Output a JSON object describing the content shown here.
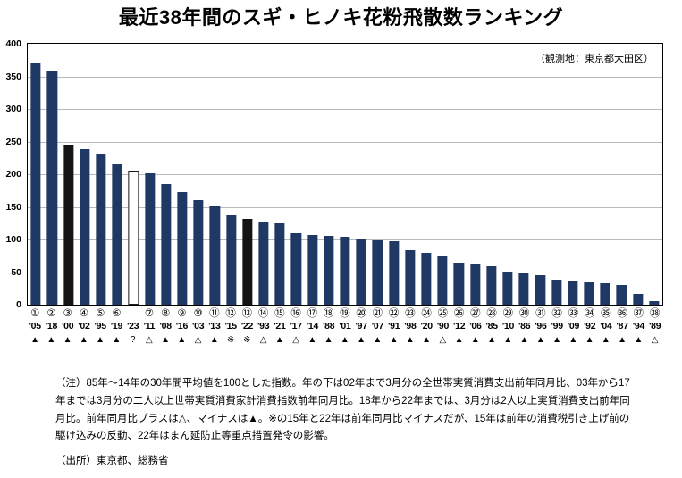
{
  "title": "最近38年間のスギ・ヒノキ花粉飛散数ランキング",
  "annotation": "（観測地：東京都大田区）",
  "note": "（注）85年～14年の30年間平均値を100とした指数。年の下は02年まで3月分の全世帯実質消費支出前年同月比、03年から17年までは3月分の二人以上世帯実質消費家計消費指数前年同月比。18年から22年までは、3月分は2人以上実質消費支出前年同月比。前年同月比プラスは△、マイナスは▲。※の15年と22年は前年同月比マイナスだが、15年は前年の消費税引き上げ前の駆け込みの反動、22年はまん延防止等重点措置発令の影響。",
  "source": "（出所）東京都、総務省",
  "chart_data": {
    "type": "bar",
    "title": "最近38年間のスギ・ヒノキ花粉飛散数ランキング",
    "annotation": "（観測地：東京都大田区）",
    "xlabel": "",
    "ylabel": "",
    "ylim": [
      0,
      400
    ],
    "yticks": [
      0,
      50,
      100,
      150,
      200,
      250,
      300,
      350,
      400
    ],
    "grid": true,
    "legend_position": "none",
    "colors": {
      "bar_navy": "#1f3864",
      "bar_black": "#141414",
      "bar_white_fill": "#ffffff",
      "bar_white_border": "#1a1a1a",
      "gridline": "#b9b9b9"
    },
    "columns": [
      {
        "rank": "①",
        "year": "'05",
        "value": 370,
        "symbol": "▲",
        "color_key": "navy"
      },
      {
        "rank": "②",
        "year": "'18",
        "value": 357,
        "symbol": "▲",
        "color_key": "navy"
      },
      {
        "rank": "③",
        "year": "'00",
        "value": 245,
        "symbol": "▲",
        "color_key": "black"
      },
      {
        "rank": "④",
        "year": "'02",
        "value": 238,
        "symbol": "▲",
        "color_key": "navy"
      },
      {
        "rank": "⑤",
        "year": "'95",
        "value": 232,
        "symbol": "▲",
        "color_key": "navy"
      },
      {
        "rank": "⑥",
        "year": "'19",
        "value": 215,
        "symbol": "▲",
        "color_key": "navy"
      },
      {
        "rank": "",
        "year": "'23",
        "value": 205,
        "symbol": "?",
        "color_key": "white"
      },
      {
        "rank": "⑦",
        "year": "'11",
        "value": 202,
        "symbol": "△",
        "color_key": "navy"
      },
      {
        "rank": "⑧",
        "year": "'08",
        "value": 185,
        "symbol": "▲",
        "color_key": "navy"
      },
      {
        "rank": "⑨",
        "year": "'16",
        "value": 172,
        "symbol": "▲",
        "color_key": "navy"
      },
      {
        "rank": "⑩",
        "year": "'03",
        "value": 160,
        "symbol": "△",
        "color_key": "navy"
      },
      {
        "rank": "⑪",
        "year": "'13",
        "value": 150,
        "symbol": "▲",
        "color_key": "navy"
      },
      {
        "rank": "⑫",
        "year": "'15",
        "value": 137,
        "symbol": "※",
        "color_key": "navy"
      },
      {
        "rank": "⑬",
        "year": "'22",
        "value": 131,
        "symbol": "※",
        "color_key": "black"
      },
      {
        "rank": "⑭",
        "year": "'93",
        "value": 128,
        "symbol": "△",
        "color_key": "navy"
      },
      {
        "rank": "⑮",
        "year": "'21",
        "value": 124,
        "symbol": "▲",
        "color_key": "navy"
      },
      {
        "rank": "⑯",
        "year": "'17",
        "value": 110,
        "symbol": "△",
        "color_key": "navy"
      },
      {
        "rank": "⑰",
        "year": "'14",
        "value": 107,
        "symbol": "▲",
        "color_key": "navy"
      },
      {
        "rank": "⑱",
        "year": "'88",
        "value": 105,
        "symbol": "▲",
        "color_key": "navy"
      },
      {
        "rank": "⑲",
        "year": "'01",
        "value": 104,
        "symbol": "▲",
        "color_key": "navy"
      },
      {
        "rank": "⑳",
        "year": "'97",
        "value": 100,
        "symbol": "▲",
        "color_key": "navy"
      },
      {
        "rank": "㉑",
        "year": "'07",
        "value": 98,
        "symbol": "▲",
        "color_key": "navy"
      },
      {
        "rank": "㉒",
        "year": "'91",
        "value": 97,
        "symbol": "▲",
        "color_key": "navy"
      },
      {
        "rank": "㉓",
        "year": "'98",
        "value": 83,
        "symbol": "▲",
        "color_key": "navy"
      },
      {
        "rank": "㉔",
        "year": "'20",
        "value": 80,
        "symbol": "▲",
        "color_key": "navy"
      },
      {
        "rank": "㉕",
        "year": "'90",
        "value": 74,
        "symbol": "△",
        "color_key": "navy"
      },
      {
        "rank": "㉖",
        "year": "'12",
        "value": 64,
        "symbol": "▲",
        "color_key": "navy"
      },
      {
        "rank": "㉗",
        "year": "'06",
        "value": 62,
        "symbol": "▲",
        "color_key": "navy"
      },
      {
        "rank": "㉘",
        "year": "'85",
        "value": 59,
        "symbol": "▲",
        "color_key": "navy"
      },
      {
        "rank": "㉙",
        "year": "'10",
        "value": 50,
        "symbol": "▲",
        "color_key": "navy"
      },
      {
        "rank": "㉚",
        "year": "'86",
        "value": 48,
        "symbol": "▲",
        "color_key": "navy"
      },
      {
        "rank": "㉛",
        "year": "'96",
        "value": 45,
        "symbol": "▲",
        "color_key": "navy"
      },
      {
        "rank": "㉜",
        "year": "'99",
        "value": 38,
        "symbol": "▲",
        "color_key": "navy"
      },
      {
        "rank": "㉝",
        "year": "'09",
        "value": 36,
        "symbol": "▲",
        "color_key": "navy"
      },
      {
        "rank": "㉞",
        "year": "'92",
        "value": 34,
        "symbol": "▲",
        "color_key": "navy"
      },
      {
        "rank": "㉟",
        "year": "'04",
        "value": 33,
        "symbol": "▲",
        "color_key": "navy"
      },
      {
        "rank": "㊱",
        "year": "'87",
        "value": 30,
        "symbol": "▲",
        "color_key": "navy"
      },
      {
        "rank": "㊲",
        "year": "'94",
        "value": 17,
        "symbol": "▲",
        "color_key": "navy"
      },
      {
        "rank": "㊳",
        "year": "'89",
        "value": 6,
        "symbol": "△",
        "color_key": "navy"
      }
    ]
  }
}
